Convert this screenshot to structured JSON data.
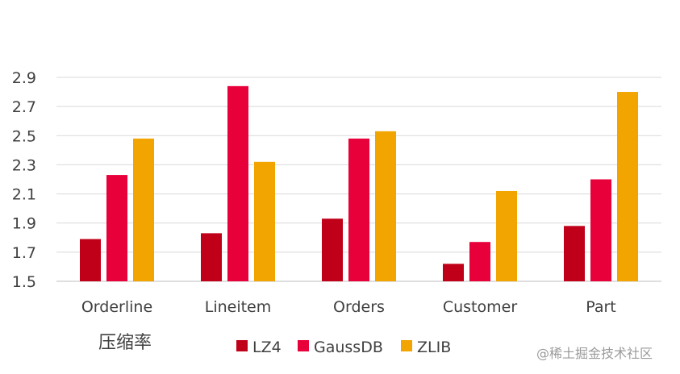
{
  "chart_data": {
    "type": "bar",
    "categories": [
      "Orderline",
      "Lineitem",
      "Orders",
      "Customer",
      "Part"
    ],
    "series": [
      {
        "name": "LZ4",
        "color": "#C00018",
        "values": [
          1.79,
          1.83,
          1.93,
          1.62,
          1.88
        ]
      },
      {
        "name": "GaussDB",
        "color": "#E8003A",
        "values": [
          2.23,
          2.84,
          2.48,
          1.77,
          2.2
        ]
      },
      {
        "name": "ZLIB",
        "color": "#F2A400",
        "values": [
          2.48,
          2.32,
          2.53,
          2.12,
          2.8
        ]
      }
    ],
    "y_ticks": [
      "1.5",
      "1.7",
      "1.9",
      "2.1",
      "2.3",
      "2.5",
      "2.7",
      "2.9"
    ],
    "ylim": [
      1.5,
      2.9
    ],
    "grid": true,
    "legend_position": "bottom",
    "caption": "压缩率"
  },
  "watermark": "@稀土掘金技术社区"
}
